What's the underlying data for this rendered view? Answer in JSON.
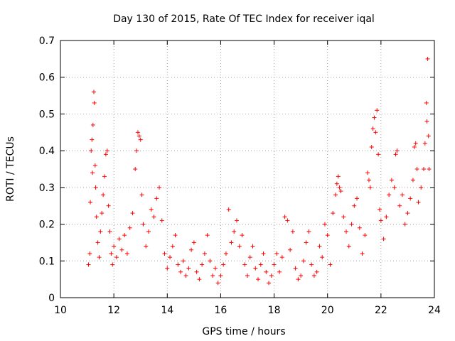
{
  "chart_data": {
    "type": "scatter",
    "title": "Day 130 of 2015, Rate Of TEC Index for receiver iqal",
    "xlabel": "GPS time / hours",
    "ylabel": "ROTI / TECUs",
    "xlim": [
      10,
      24
    ],
    "ylim": [
      0,
      0.7
    ],
    "x_ticks": [
      "10",
      "12",
      "14",
      "16",
      "18",
      "20",
      "22",
      "24"
    ],
    "y_ticks": [
      "0",
      "0.1",
      "0.2",
      "0.3",
      "0.4",
      "0.5",
      "0.6",
      "0.7"
    ],
    "grid": true,
    "marker": "+",
    "color": "#ff0000",
    "series": [
      {
        "name": "ROTI",
        "points": [
          [
            11.05,
            0.09
          ],
          [
            11.1,
            0.12
          ],
          [
            11.12,
            0.26
          ],
          [
            11.15,
            0.4
          ],
          [
            11.18,
            0.43
          ],
          [
            11.2,
            0.34
          ],
          [
            11.22,
            0.47
          ],
          [
            11.25,
            0.56
          ],
          [
            11.27,
            0.53
          ],
          [
            11.3,
            0.36
          ],
          [
            11.32,
            0.3
          ],
          [
            11.35,
            0.22
          ],
          [
            11.4,
            0.15
          ],
          [
            11.45,
            0.11
          ],
          [
            11.5,
            0.18
          ],
          [
            11.55,
            0.23
          ],
          [
            11.6,
            0.28
          ],
          [
            11.65,
            0.33
          ],
          [
            11.7,
            0.39
          ],
          [
            11.75,
            0.4
          ],
          [
            11.8,
            0.25
          ],
          [
            11.85,
            0.18
          ],
          [
            11.9,
            0.12
          ],
          [
            11.95,
            0.09
          ],
          [
            12.0,
            0.14
          ],
          [
            12.1,
            0.11
          ],
          [
            12.2,
            0.16
          ],
          [
            12.3,
            0.13
          ],
          [
            12.4,
            0.17
          ],
          [
            12.5,
            0.12
          ],
          [
            12.6,
            0.19
          ],
          [
            12.7,
            0.23
          ],
          [
            12.8,
            0.35
          ],
          [
            12.85,
            0.4
          ],
          [
            12.9,
            0.45
          ],
          [
            12.95,
            0.44
          ],
          [
            13.0,
            0.43
          ],
          [
            13.05,
            0.28
          ],
          [
            13.1,
            0.2
          ],
          [
            13.2,
            0.14
          ],
          [
            13.3,
            0.18
          ],
          [
            13.4,
            0.24
          ],
          [
            13.5,
            0.22
          ],
          [
            13.6,
            0.27
          ],
          [
            13.7,
            0.3
          ],
          [
            13.8,
            0.21
          ],
          [
            13.9,
            0.12
          ],
          [
            14.0,
            0.08
          ],
          [
            14.1,
            0.11
          ],
          [
            14.2,
            0.14
          ],
          [
            14.3,
            0.17
          ],
          [
            14.4,
            0.09
          ],
          [
            14.5,
            0.07
          ],
          [
            14.6,
            0.1
          ],
          [
            14.7,
            0.06
          ],
          [
            14.8,
            0.08
          ],
          [
            14.9,
            0.13
          ],
          [
            15.0,
            0.15
          ],
          [
            15.1,
            0.07
          ],
          [
            15.2,
            0.05
          ],
          [
            15.3,
            0.09
          ],
          [
            15.4,
            0.12
          ],
          [
            15.5,
            0.17
          ],
          [
            15.6,
            0.1
          ],
          [
            15.7,
            0.06
          ],
          [
            15.8,
            0.08
          ],
          [
            15.9,
            0.04
          ],
          [
            16.0,
            0.06
          ],
          [
            16.1,
            0.09
          ],
          [
            16.2,
            0.12
          ],
          [
            16.3,
            0.24
          ],
          [
            16.4,
            0.15
          ],
          [
            16.5,
            0.18
          ],
          [
            16.6,
            0.21
          ],
          [
            16.7,
            0.14
          ],
          [
            16.8,
            0.17
          ],
          [
            16.9,
            0.09
          ],
          [
            17.0,
            0.06
          ],
          [
            17.1,
            0.11
          ],
          [
            17.2,
            0.14
          ],
          [
            17.3,
            0.08
          ],
          [
            17.4,
            0.05
          ],
          [
            17.5,
            0.09
          ],
          [
            17.6,
            0.12
          ],
          [
            17.7,
            0.07
          ],
          [
            17.8,
            0.04
          ],
          [
            17.9,
            0.06
          ],
          [
            18.0,
            0.09
          ],
          [
            18.1,
            0.12
          ],
          [
            18.2,
            0.07
          ],
          [
            18.3,
            0.11
          ],
          [
            18.4,
            0.22
          ],
          [
            18.5,
            0.21
          ],
          [
            18.6,
            0.13
          ],
          [
            18.7,
            0.18
          ],
          [
            18.8,
            0.08
          ],
          [
            18.9,
            0.05
          ],
          [
            19.0,
            0.06
          ],
          [
            19.1,
            0.1
          ],
          [
            19.2,
            0.15
          ],
          [
            19.3,
            0.18
          ],
          [
            19.4,
            0.09
          ],
          [
            19.5,
            0.06
          ],
          [
            19.6,
            0.07
          ],
          [
            19.7,
            0.14
          ],
          [
            19.8,
            0.11
          ],
          [
            19.9,
            0.2
          ],
          [
            20.0,
            0.17
          ],
          [
            20.1,
            0.09
          ],
          [
            20.2,
            0.23
          ],
          [
            20.3,
            0.28
          ],
          [
            20.35,
            0.31
          ],
          [
            20.4,
            0.33
          ],
          [
            20.45,
            0.3
          ],
          [
            20.5,
            0.29
          ],
          [
            20.6,
            0.22
          ],
          [
            20.7,
            0.18
          ],
          [
            20.8,
            0.14
          ],
          [
            20.9,
            0.2
          ],
          [
            21.0,
            0.25
          ],
          [
            21.1,
            0.27
          ],
          [
            21.2,
            0.19
          ],
          [
            21.3,
            0.12
          ],
          [
            21.4,
            0.17
          ],
          [
            21.5,
            0.34
          ],
          [
            21.55,
            0.32
          ],
          [
            21.6,
            0.3
          ],
          [
            21.65,
            0.41
          ],
          [
            21.7,
            0.46
          ],
          [
            21.75,
            0.49
          ],
          [
            21.8,
            0.45
          ],
          [
            21.85,
            0.51
          ],
          [
            21.9,
            0.39
          ],
          [
            21.95,
            0.24
          ],
          [
            22.0,
            0.21
          ],
          [
            22.1,
            0.16
          ],
          [
            22.2,
            0.22
          ],
          [
            22.3,
            0.28
          ],
          [
            22.4,
            0.32
          ],
          [
            22.5,
            0.3
          ],
          [
            22.55,
            0.39
          ],
          [
            22.6,
            0.4
          ],
          [
            22.7,
            0.25
          ],
          [
            22.8,
            0.28
          ],
          [
            22.9,
            0.2
          ],
          [
            23.0,
            0.23
          ],
          [
            23.1,
            0.27
          ],
          [
            23.2,
            0.32
          ],
          [
            23.25,
            0.41
          ],
          [
            23.3,
            0.42
          ],
          [
            23.35,
            0.35
          ],
          [
            23.4,
            0.26
          ],
          [
            23.5,
            0.3
          ],
          [
            23.6,
            0.35
          ],
          [
            23.65,
            0.42
          ],
          [
            23.7,
            0.53
          ],
          [
            23.72,
            0.48
          ],
          [
            23.75,
            0.65
          ],
          [
            23.78,
            0.44
          ],
          [
            23.8,
            0.35
          ]
        ]
      }
    ]
  }
}
